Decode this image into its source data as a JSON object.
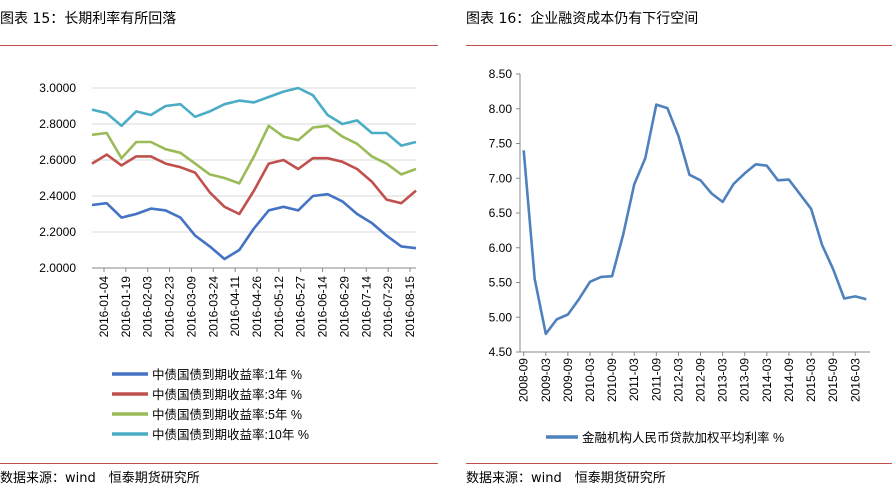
{
  "left_panel": {
    "title": "图表 15：长期利率有所回落",
    "source": "数据来源：wind　恒泰期货研究所"
  },
  "right_panel": {
    "title": "图表 16：企业融资成本仍有下行空间",
    "source": "数据来源：wind　恒泰期货研究所"
  },
  "colors": {
    "rule": "#c0504d",
    "grid": "#d9d9d9"
  },
  "chart_data": [
    {
      "type": "line",
      "title": "",
      "xlabel": "",
      "ylabel": "",
      "ylim": [
        2.0,
        3.0
      ],
      "y_ticks": [
        "3.0000",
        "2.8000",
        "2.6000",
        "2.4000",
        "2.2000",
        "2.0000"
      ],
      "x_ticks": [
        "2016-01-04",
        "2016-01-19",
        "2016-02-03",
        "2016-02-23",
        "2016-03-09",
        "2016-03-24",
        "2016-04-11",
        "2016-04-26",
        "2016-05-12",
        "2016-05-27",
        "2016-06-14",
        "2016-06-29",
        "2016-07-14",
        "2016-07-29",
        "2016-08-15"
      ],
      "grid": true,
      "legend": "bottom",
      "series": [
        {
          "name": "中债国债到期收益率:1年 %",
          "color": "#4472c4",
          "values": [
            2.35,
            2.36,
            2.28,
            2.3,
            2.33,
            2.32,
            2.28,
            2.18,
            2.12,
            2.05,
            2.1,
            2.22,
            2.32,
            2.34,
            2.32,
            2.4,
            2.41,
            2.37,
            2.3,
            2.25,
            2.18,
            2.12,
            2.11
          ]
        },
        {
          "name": "中债国债到期收益率:3年 %",
          "color": "#c0504d",
          "values": [
            2.58,
            2.63,
            2.57,
            2.62,
            2.62,
            2.58,
            2.56,
            2.53,
            2.42,
            2.34,
            2.3,
            2.43,
            2.58,
            2.6,
            2.55,
            2.61,
            2.61,
            2.59,
            2.55,
            2.48,
            2.38,
            2.36,
            2.43
          ]
        },
        {
          "name": "中债国债到期收益率:5年 %",
          "color": "#9bbb59",
          "values": [
            2.74,
            2.75,
            2.61,
            2.7,
            2.7,
            2.66,
            2.64,
            2.58,
            2.52,
            2.5,
            2.47,
            2.62,
            2.79,
            2.73,
            2.71,
            2.78,
            2.79,
            2.73,
            2.69,
            2.62,
            2.58,
            2.52,
            2.55
          ]
        },
        {
          "name": "中债国债到期收益率:10年 %",
          "color": "#4bacc6",
          "values": [
            2.88,
            2.86,
            2.79,
            2.87,
            2.85,
            2.9,
            2.91,
            2.84,
            2.87,
            2.91,
            2.93,
            2.92,
            2.95,
            2.98,
            3.0,
            2.96,
            2.85,
            2.8,
            2.82,
            2.75,
            2.75,
            2.68,
            2.7
          ]
        }
      ]
    },
    {
      "type": "line",
      "title": "",
      "xlabel": "",
      "ylabel": "",
      "ylim": [
        4.5,
        8.5
      ],
      "y_ticks": [
        "8.50",
        "8.00",
        "7.50",
        "7.00",
        "6.50",
        "6.00",
        "5.50",
        "5.00",
        "4.50"
      ],
      "x_ticks": [
        "2008-09",
        "2009-03",
        "2009-09",
        "2010-03",
        "2010-09",
        "2011-03",
        "2011-09",
        "2012-03",
        "2012-09",
        "2013-03",
        "2013-09",
        "2014-03",
        "2014-09",
        "2015-03",
        "2015-09",
        "2016-03"
      ],
      "grid": false,
      "legend": "bottom",
      "series": [
        {
          "name": "金融机构人民币贷款加权平均利率 %",
          "color": "#4f81bd",
          "x": [
            "2008-09",
            "2008-12",
            "2009-03",
            "2009-06",
            "2009-09",
            "2009-12",
            "2010-03",
            "2010-06",
            "2010-09",
            "2010-12",
            "2011-03",
            "2011-06",
            "2011-09",
            "2011-12",
            "2012-03",
            "2012-06",
            "2012-09",
            "2012-12",
            "2013-03",
            "2013-06",
            "2013-09",
            "2013-12",
            "2014-03",
            "2014-06",
            "2014-09",
            "2014-12",
            "2015-03",
            "2015-06",
            "2015-09",
            "2015-12",
            "2016-03",
            "2016-06"
          ],
          "values": [
            7.4,
            5.55,
            4.76,
            4.97,
            5.04,
            5.26,
            5.51,
            5.58,
            5.59,
            6.19,
            6.91,
            7.29,
            8.06,
            8.01,
            7.61,
            7.05,
            6.97,
            6.78,
            6.66,
            6.92,
            7.07,
            7.2,
            7.18,
            6.97,
            6.98,
            6.77,
            6.56,
            6.04,
            5.69,
            5.27,
            5.3,
            5.26
          ]
        }
      ]
    }
  ]
}
